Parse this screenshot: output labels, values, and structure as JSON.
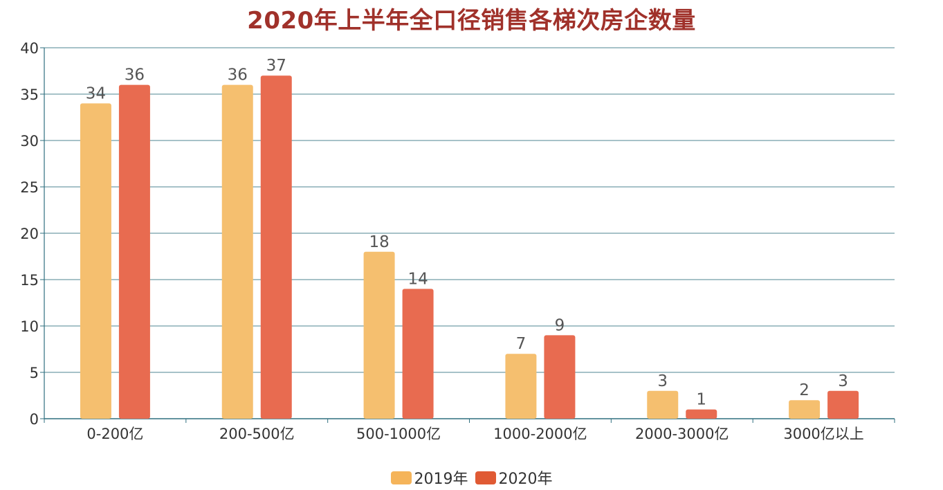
{
  "title": "2020年上半年全口径销售各梯次房企数量",
  "colors": {
    "title": "#a0312a",
    "axis": "#2f6f7f",
    "grid": "#2f6f7f",
    "label": "#555555",
    "series": [
      "#f5bf6f",
      "#e86b50"
    ],
    "legend_swatch": [
      "#f5b45a",
      "#e05a34"
    ]
  },
  "chart_data": {
    "type": "bar",
    "title": "2020年上半年全口径销售各梯次房企数量",
    "categories": [
      "0-200亿",
      "200-500亿",
      "500-1000亿",
      "1000-2000亿",
      "2000-3000亿",
      "3000亿以上"
    ],
    "series": [
      {
        "name": "2019年",
        "values": [
          34,
          36,
          18,
          7,
          3,
          2
        ]
      },
      {
        "name": "2020年",
        "values": [
          36,
          37,
          14,
          9,
          1,
          3
        ]
      }
    ],
    "ylim": [
      0,
      40
    ],
    "yticks": [
      0,
      5,
      10,
      15,
      20,
      25,
      30,
      35,
      40
    ],
    "grid": true,
    "data_labels": true,
    "legend_position": "bottom-center"
  },
  "legend": [
    {
      "label": "2019年"
    },
    {
      "label": "2020年"
    }
  ]
}
